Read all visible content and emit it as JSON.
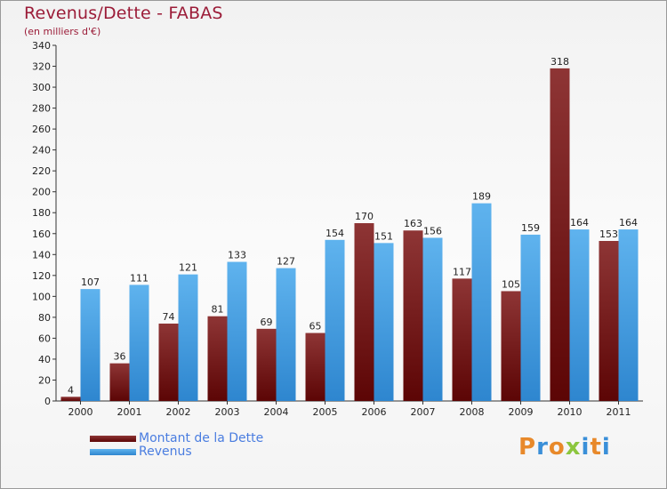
{
  "chart_data": {
    "type": "bar",
    "title": "Revenus/Dette - FABAS",
    "subtitle": "(en milliers d'€)",
    "categories": [
      "2000",
      "2001",
      "2002",
      "2003",
      "2004",
      "2005",
      "2006",
      "2007",
      "2008",
      "2009",
      "2010",
      "2011"
    ],
    "series": [
      {
        "name": "Montant de la Dette",
        "values": [
          4,
          36,
          74,
          81,
          69,
          65,
          170,
          163,
          117,
          105,
          318,
          153
        ],
        "color": "#7a1616"
      },
      {
        "name": "Revenus",
        "values": [
          107,
          111,
          121,
          133,
          127,
          154,
          151,
          156,
          189,
          159,
          164,
          164
        ],
        "color": "#4aa5e8"
      }
    ],
    "ylim": [
      0,
      340
    ],
    "yticks": [
      0,
      20,
      40,
      60,
      80,
      100,
      120,
      140,
      160,
      180,
      200,
      220,
      240,
      260,
      280,
      300,
      320,
      340
    ],
    "grid": false,
    "legend_position": "bottom-left"
  },
  "branding": {
    "logo_text": "Proxiti"
  }
}
